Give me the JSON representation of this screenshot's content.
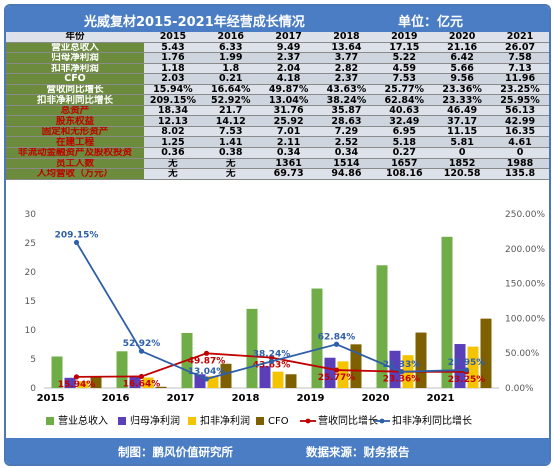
{
  "header": {
    "title": "光威复材2015-2021年经营成长情况",
    "unit": "单位：亿元"
  },
  "table": {
    "columns": [
      "年份",
      "2015",
      "2016",
      "2017",
      "2018",
      "2019",
      "2020",
      "2021"
    ],
    "rows": [
      {
        "label": "营业总收入",
        "values": [
          "5.43",
          "6.33",
          "9.49",
          "13.64",
          "17.15",
          "21.16",
          "26.07"
        ]
      },
      {
        "label": "归母净利润",
        "values": [
          "1.76",
          "1.99",
          "2.37",
          "3.77",
          "5.22",
          "6.42",
          "7.58"
        ]
      },
      {
        "label": "扣非净利润",
        "values": [
          "1.18",
          "1.8",
          "2.04",
          "2.82",
          "4.59",
          "5.66",
          "7.13"
        ]
      },
      {
        "label": "CFO",
        "values": [
          "2.03",
          "0.21",
          "4.18",
          "2.37",
          "7.53",
          "9.56",
          "11.96"
        ]
      },
      {
        "label": "营收同比增长",
        "values": [
          "15.94%",
          "16.64%",
          "49.87%",
          "43.63%",
          "25.77%",
          "23.36%",
          "23.25%"
        ]
      },
      {
        "label": "扣非净利同比增长",
        "values": [
          "209.15%",
          "52.92%",
          "13.04%",
          "38.24%",
          "62.84%",
          "23.33%",
          "25.95%"
        ]
      },
      {
        "label": "总资产",
        "red": true,
        "values": [
          "18.34",
          "21.7",
          "31.76",
          "35.87",
          "40.63",
          "46.49",
          "56.13"
        ]
      },
      {
        "label": "股东权益",
        "red": true,
        "values": [
          "12.13",
          "14.12",
          "25.92",
          "28.63",
          "32.49",
          "37.17",
          "42.99"
        ]
      },
      {
        "label": "固定和无形资产",
        "red": true,
        "values": [
          "8.02",
          "7.53",
          "7.01",
          "7.29",
          "6.95",
          "11.15",
          "16.35"
        ]
      },
      {
        "label": "在建工程",
        "red": true,
        "values": [
          "1.25",
          "1.41",
          "2.11",
          "2.52",
          "5.18",
          "5.81",
          "4.61"
        ]
      },
      {
        "label": "非流动金融资产及股权投资",
        "red": true,
        "values": [
          "0.36",
          "0.38",
          "0.34",
          "0.34",
          "0.27",
          "0",
          "0"
        ]
      },
      {
        "label": "员工人数",
        "red": true,
        "values": [
          "无",
          "无",
          "1361",
          "1514",
          "1657",
          "1852",
          "1988"
        ]
      },
      {
        "label": "人均营收（万元）",
        "red": true,
        "values": [
          "无",
          "无",
          "69.73",
          "94.86",
          "108.16",
          "120.58",
          "135.8"
        ]
      }
    ]
  },
  "chart_data": {
    "type": "bar",
    "categories": [
      "2015",
      "2016",
      "2017",
      "2018",
      "2019",
      "2020",
      "2021"
    ],
    "series": [
      {
        "name": "营业总收入",
        "kind": "bar",
        "axis": "left",
        "color": "#70ad47",
        "values": [
          5.43,
          6.33,
          9.49,
          13.64,
          17.15,
          21.16,
          26.07
        ]
      },
      {
        "name": "归母净利润",
        "kind": "bar",
        "axis": "left",
        "color": "#5b3fb8",
        "values": [
          1.76,
          1.99,
          2.37,
          3.77,
          5.22,
          6.42,
          7.58
        ]
      },
      {
        "name": "扣非净利润",
        "kind": "bar",
        "axis": "left",
        "color": "#f5c400",
        "values": [
          1.18,
          1.8,
          2.04,
          2.82,
          4.59,
          5.66,
          7.13
        ]
      },
      {
        "name": "CFO",
        "kind": "bar",
        "axis": "left",
        "color": "#7f6000",
        "values": [
          2.03,
          0.21,
          4.18,
          2.37,
          7.53,
          9.56,
          11.96
        ]
      },
      {
        "name": "营收同比增长",
        "kind": "line",
        "axis": "right",
        "color": "#c00000",
        "values": [
          15.94,
          16.64,
          49.87,
          43.63,
          25.77,
          23.36,
          23.25
        ]
      },
      {
        "name": "扣非净利同比增长",
        "kind": "line",
        "axis": "right",
        "color": "#2e5fa8",
        "values": [
          209.15,
          52.92,
          13.04,
          38.24,
          62.84,
          23.33,
          25.95
        ]
      }
    ],
    "data_labels": {
      "营收同比增长": [
        "15.94%",
        "16.64%",
        "49.87%",
        "43.63%",
        "25.77%",
        "23.36%",
        "23.25%"
      ],
      "扣非净利同比增长": [
        "209.15%",
        "52.92%",
        "13.04%",
        "38.24%",
        "62.84%",
        "23.33%",
        "25.95%"
      ]
    },
    "y_left": {
      "min": 0,
      "max": 30,
      "ticks": [
        "0",
        "5",
        "10",
        "15",
        "20",
        "25",
        "30"
      ]
    },
    "y_right": {
      "min": 0,
      "max": 250,
      "ticks": [
        "0.00%",
        "50.00%",
        "100.00%",
        "150.00%",
        "200.00%",
        "250.00%"
      ]
    },
    "legend_position": "bottom",
    "grid": false
  },
  "footer": {
    "left": "制图：鹏风价值研究所",
    "right": "数据来源：财务报告"
  }
}
